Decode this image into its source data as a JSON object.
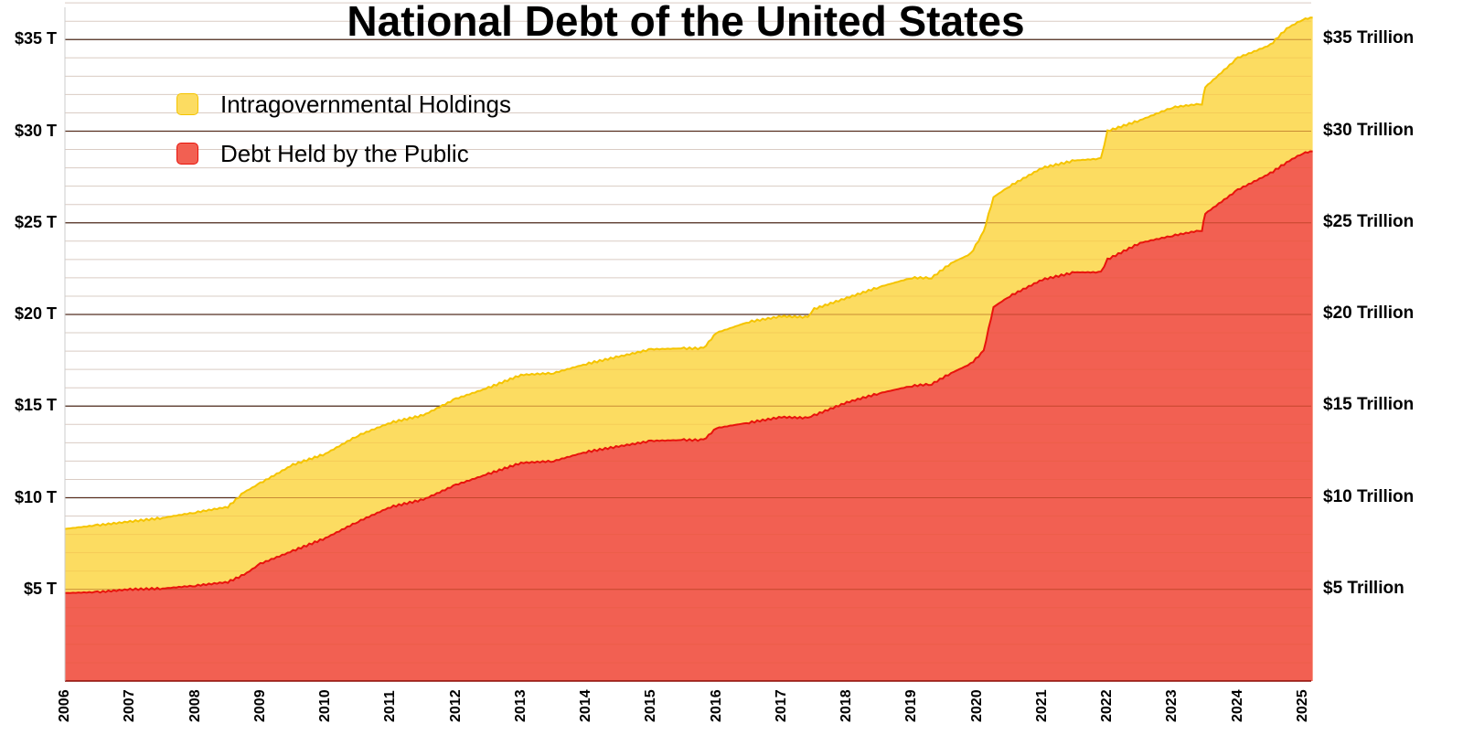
{
  "chart_data": {
    "type": "area",
    "stacked": true,
    "title": "National Debt of the United States",
    "xlabel": "",
    "ylabel": "",
    "ylim": [
      0,
      37
    ],
    "xlim": [
      2006,
      2025.15
    ],
    "grid": true,
    "legend_position": "upper-left",
    "left_tick_labels": [
      "$5 T",
      "$10 T",
      "$15 T",
      "$20 T",
      "$25 T",
      "$30 T",
      "$35 T"
    ],
    "right_tick_labels": [
      "$5 Trillion",
      "$10 Trillion",
      "$15 Trillion",
      "$20 Trillion",
      "$25 Trillion",
      "$30 Trillion",
      "$35 Trillion"
    ],
    "y_ticks": [
      5,
      10,
      15,
      20,
      25,
      30,
      35
    ],
    "x_tick_labels": [
      "2006",
      "2007",
      "2008",
      "2009",
      "2010",
      "2011",
      "2012",
      "2013",
      "2014",
      "2015",
      "2016",
      "2017",
      "2018",
      "2019",
      "2020",
      "2021",
      "2022",
      "2023",
      "2024",
      "2025"
    ],
    "x": [
      2006.0,
      2006.5,
      2007.0,
      2007.5,
      2008.0,
      2008.5,
      2008.75,
      2009.0,
      2009.5,
      2010.0,
      2010.5,
      2011.0,
      2011.5,
      2012.0,
      2012.5,
      2013.0,
      2013.5,
      2014.0,
      2014.5,
      2015.0,
      2015.5,
      2015.8,
      2016.0,
      2016.5,
      2017.0,
      2017.4,
      2017.5,
      2018.0,
      2018.5,
      2019.0,
      2019.3,
      2019.6,
      2019.9,
      2020.1,
      2020.25,
      2020.5,
      2021.0,
      2021.5,
      2021.9,
      2022.0,
      2022.5,
      2023.0,
      2023.45,
      2023.5,
      2024.0,
      2024.5,
      2024.75,
      2025.0,
      2025.15
    ],
    "series": [
      {
        "name": "Debt Held by the Public",
        "color": "#f26052",
        "line_color": "#e8140c",
        "values": [
          4.8,
          4.85,
          5.0,
          5.05,
          5.2,
          5.4,
          5.8,
          6.4,
          7.1,
          7.8,
          8.7,
          9.5,
          9.9,
          10.7,
          11.3,
          11.9,
          12.0,
          12.5,
          12.8,
          13.1,
          13.15,
          13.15,
          13.8,
          14.1,
          14.4,
          14.35,
          14.5,
          15.2,
          15.7,
          16.1,
          16.2,
          16.8,
          17.3,
          18.0,
          20.4,
          21.0,
          21.9,
          22.3,
          22.3,
          23.0,
          23.9,
          24.3,
          24.6,
          25.5,
          26.8,
          27.7,
          28.3,
          28.8,
          28.9
        ]
      },
      {
        "name": "Intragovernmental Holdings",
        "color": "#fcdc61",
        "line_color": "#f5c400",
        "total_values": [
          8.3,
          8.5,
          8.7,
          8.9,
          9.2,
          9.5,
          10.3,
          10.8,
          11.8,
          12.4,
          13.4,
          14.1,
          14.5,
          15.4,
          16.0,
          16.7,
          16.8,
          17.3,
          17.7,
          18.1,
          18.15,
          18.15,
          19.0,
          19.6,
          19.9,
          19.85,
          20.3,
          20.9,
          21.5,
          22.0,
          22.0,
          22.8,
          23.3,
          24.5,
          26.4,
          27.0,
          28.0,
          28.4,
          28.5,
          30.0,
          30.6,
          31.3,
          31.5,
          32.4,
          34.0,
          34.7,
          35.6,
          36.1,
          36.2
        ]
      }
    ],
    "legend": [
      "Intragovernmental Holdings",
      "Debt Held by the Public"
    ]
  },
  "legend": {
    "items": [
      {
        "label": "Intragovernmental Holdings",
        "color": "#fcdc61",
        "border": "#f5c400"
      },
      {
        "label": "Debt Held by the Public",
        "color": "#f26052",
        "border": "#e8140c"
      }
    ]
  }
}
